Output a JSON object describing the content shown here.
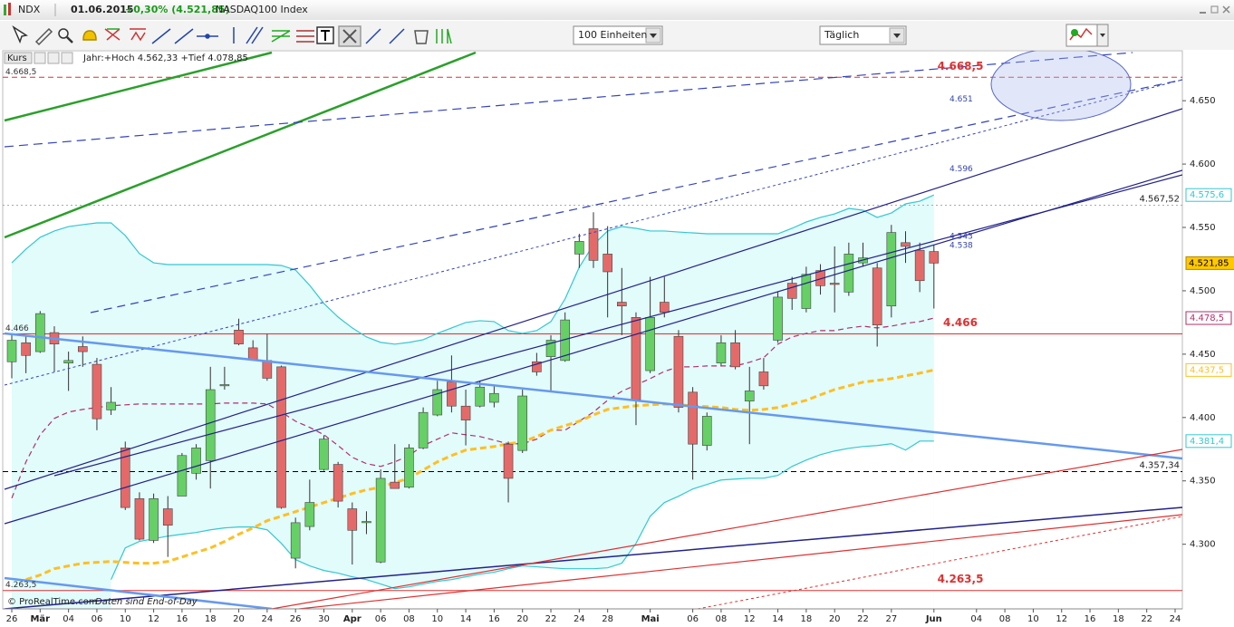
{
  "window": {
    "symbol": "NDX",
    "date": "01.06.2015",
    "change": "+0,30% (4.521,85)",
    "name": "NASDAQ100 Index"
  },
  "toolbar": {
    "units": "100 Einheiten",
    "period": "Täglich"
  },
  "chart_data": {
    "type": "candlestick",
    "info_label": "Kurs",
    "info": "Jahr:+Hoch 4.562,33 +Tief 4.078,85",
    "footer": "© ProRealTime.com",
    "footer_note": "Daten sind End-of-Day",
    "up_color": "#66d066",
    "down_color": "#e46a6a",
    "ylim": [
      4249,
      4688
    ],
    "yticks": [
      {
        "value": 4300,
        "label": "4.300"
      },
      {
        "value": 4350,
        "label": "4.350"
      },
      {
        "value": 4400,
        "label": "4.400"
      },
      {
        "value": 4450,
        "label": "4.450"
      },
      {
        "value": 4500,
        "label": "4.500"
      },
      {
        "value": 4550,
        "label": "4.550"
      },
      {
        "value": 4600,
        "label": "4.600"
      },
      {
        "value": 4650,
        "label": "4.650"
      }
    ],
    "categories": [
      "26",
      null,
      "Mär",
      null,
      "04",
      null,
      "06",
      null,
      "10",
      null,
      "12",
      null,
      "16",
      null,
      "18",
      null,
      "20",
      null,
      "24",
      null,
      "26",
      null,
      "30",
      null,
      "Apr",
      null,
      "06",
      null,
      "08",
      null,
      "10",
      null,
      "14",
      null,
      "16",
      null,
      "20",
      null,
      "22",
      null,
      "24",
      null,
      "28",
      null,
      null,
      "Mai",
      null,
      null,
      "06",
      null,
      "08",
      null,
      "12",
      null,
      "14",
      null,
      "18",
      null,
      "20",
      null,
      "22",
      null,
      "27",
      null,
      null,
      "Jun",
      null,
      null,
      "04",
      null,
      "08",
      null,
      "10",
      null,
      "12",
      null,
      "16",
      null,
      "18",
      null,
      "22",
      null,
      "24"
    ],
    "open": [
      4444,
      4459,
      4452,
      4467,
      4443,
      4456,
      4442,
      4406,
      4376,
      4336,
      4303,
      4328,
      4338,
      4356,
      4366,
      4425,
      4469,
      4455,
      4445,
      4440,
      4289,
      4314,
      4359,
      4363,
      4328,
      4317,
      4286,
      4349,
      4345,
      4376,
      4402,
      4428,
      4409,
      4409,
      4412,
      4379,
      4374,
      4444,
      4448,
      4445,
      4529,
      4549,
      4529,
      4491,
      4479,
      4437,
      4491,
      4464,
      4420,
      4378,
      4443,
      4459,
      4413,
      4436,
      4461,
      4506,
      4486,
      4516,
      4506,
      4499,
      4522,
      4518,
      4488,
      4538,
      4532,
      4531,
      null,
      null,
      null,
      null,
      null,
      null,
      null,
      null,
      null,
      null,
      null,
      null,
      null,
      null,
      null,
      null,
      null
    ],
    "high": [
      4466,
      4464,
      4484,
      4472,
      4452,
      4464,
      4447,
      4424,
      4381,
      4341,
      4340,
      4338,
      4372,
      4379,
      4440,
      4440,
      4478,
      4461,
      4466,
      4441,
      4321,
      4351,
      4386,
      4365,
      4333,
      4326,
      4359,
      4379,
      4379,
      4408,
      4429,
      4449,
      4422,
      4429,
      4426,
      4381,
      4422,
      4451,
      4465,
      4483,
      4545,
      4562,
      4551,
      4518,
      4483,
      4511,
      4511,
      4469,
      4424,
      4404,
      4465,
      4469,
      4440,
      4447,
      4499,
      4511,
      4519,
      4521,
      4535,
      4538,
      4538,
      4522,
      4552,
      4547,
      4538,
      4536,
      null,
      null,
      null,
      null,
      null,
      null,
      null,
      null,
      null,
      null,
      null,
      null,
      null,
      null,
      null,
      null,
      null
    ],
    "low": [
      4431,
      4435,
      4451,
      4436,
      4421,
      4440,
      4390,
      4402,
      4327,
      4303,
      4301,
      4290,
      4338,
      4351,
      4344,
      4422,
      4457,
      4445,
      4429,
      4328,
      4281,
      4311,
      4358,
      4329,
      4284,
      4308,
      4285,
      4344,
      4344,
      4375,
      4401,
      4404,
      4378,
      4408,
      4408,
      4333,
      4372,
      4433,
      4420,
      4444,
      4518,
      4518,
      4479,
      4465,
      4394,
      4435,
      4479,
      4404,
      4351,
      4374,
      4441,
      4438,
      4379,
      4422,
      4459,
      4485,
      4483,
      4497,
      4483,
      4496,
      4519,
      4456,
      4479,
      4522,
      4499,
      4486,
      null,
      null,
      null,
      null,
      null,
      null,
      null,
      null,
      null,
      null,
      null,
      null,
      null,
      null,
      null,
      null,
      null
    ],
    "close": [
      4461,
      4449,
      4482,
      4458,
      4445,
      4452,
      4399,
      4412,
      4329,
      4304,
      4336,
      4315,
      4370,
      4376,
      4422,
      4426,
      4458,
      4446,
      4431,
      4329,
      4317,
      4333,
      4383,
      4334,
      4311,
      4318,
      4352,
      4344,
      4376,
      4404,
      4422,
      4409,
      4398,
      4424,
      4419,
      4352,
      4417,
      4436,
      4461,
      4477,
      4539,
      4524,
      4515,
      4488,
      4414,
      4479,
      4483,
      4408,
      4379,
      4401,
      4459,
      4440,
      4421,
      4425,
      4495,
      4494,
      4513,
      4504,
      4505,
      4529,
      4526,
      4473,
      4546,
      4535,
      4508,
      4521.85,
      null,
      null,
      null,
      null,
      null,
      null,
      null,
      null,
      null,
      null,
      null,
      null,
      null,
      null,
      null,
      null,
      null
    ],
    "close_label": "4.521,85",
    "overlays": [
      {
        "color": "#33c8d0",
        "style": "solid",
        "last_label": "4.575,6",
        "values": [
          4522.1,
          4532.9,
          4542.2,
          4547.2,
          4550.7,
          4552.2,
          4553.6,
          4553.6,
          4543.6,
          4529.3,
          4522.1,
          4520.7,
          4520.7,
          4520.7,
          4520.7,
          4520.7,
          4520.7,
          4520.7,
          4520.7,
          4520.0,
          4516.4,
          4504.3,
          4490.0,
          4479.3,
          4470.7,
          4463.6,
          4459.3,
          4457.9,
          4459.3,
          4461.4,
          4466.4,
          4470.7,
          4475.0,
          4476.4,
          4475.7,
          4468.6,
          4466.4,
          4468.6,
          4475.7,
          4493.6,
          4518.6,
          4536.4,
          4547.2,
          4550.7,
          4549.3,
          4547.2,
          4547.2,
          4546.4,
          4545.7,
          4545.0,
          4545.0,
          4545.0,
          4545.0,
          4545.0,
          4545.0,
          4549.3,
          4554.3,
          4557.9,
          4560.7,
          4565.0,
          4563.6,
          4557.9,
          4561.4,
          4568.6,
          4570.7,
          4575.6,
          null,
          null,
          null,
          null,
          null,
          null,
          null,
          null,
          null,
          null,
          null,
          null,
          null,
          null,
          null,
          null,
          null
        ]
      },
      {
        "color": "#33c8d0",
        "style": "solid",
        "last_label": "4.381,4",
        "values": [
          null,
          null,
          null,
          null,
          null,
          null,
          null,
          4272.1,
          4297.1,
          4302.2,
          4304.3,
          4306.4,
          4307.9,
          4309.3,
          4311.4,
          4312.9,
          4313.6,
          4313.6,
          4311.4,
          4300.7,
          4287.9,
          4282.9,
          4279.3,
          4277.2,
          4274.3,
          4272.1,
          4268.6,
          4265.0,
          4266.4,
          4268.6,
          4270.7,
          4272.1,
          4274.3,
          4276.4,
          4277.9,
          4280.7,
          4282.9,
          4282.2,
          4281.4,
          4280.7,
          4280.7,
          4280.7,
          4281.4,
          4285.0,
          4300.7,
          4322.1,
          4332.9,
          4337.9,
          4343.6,
          4347.2,
          4350.7,
          4351.4,
          4352.1,
          4352.1,
          4354.3,
          4361.4,
          4366.4,
          4370.7,
          4373.6,
          4375.7,
          4377.1,
          4377.9,
          4379.3,
          4374.3,
          4381.4,
          4381.4,
          null,
          null,
          null,
          null,
          null,
          null,
          null,
          null,
          null,
          null,
          null,
          null,
          null,
          null,
          null,
          null,
          null
        ]
      },
      {
        "color": "#b0306a",
        "style": "dashed",
        "last_label": "4.478,5",
        "values": [
          4336.4,
          4365.0,
          4386.4,
          4399.3,
          4404.3,
          4406.4,
          4407.9,
          4409.3,
          4410.0,
          4410.7,
          4410.7,
          4410.7,
          4410.7,
          4410.7,
          4410.7,
          4411.4,
          4411.4,
          4411.4,
          4410.7,
          4404.3,
          4397.1,
          4392.2,
          4386.4,
          4377.9,
          4368.6,
          4363.6,
          4361.4,
          4365.0,
          4370.0,
          4377.9,
          4382.9,
          4387.9,
          4386.4,
          4385.0,
          4382.1,
          4379.3,
          4379.3,
          4382.9,
          4390.0,
          4390.0,
          4397.1,
          4404.3,
          4413.6,
          4420.7,
          4425.7,
          4430.7,
          4436.4,
          4440.0,
          4440.0,
          4440.7,
          4440.7,
          4440.7,
          4443.6,
          4447.2,
          4457.9,
          4463.6,
          4466.4,
          4468.6,
          4468.6,
          4470.7,
          4472.1,
          4470.7,
          4472.1,
          4474.3,
          4475.7,
          4478.5,
          null,
          null,
          null,
          null,
          null,
          null,
          null,
          null,
          null,
          null,
          null,
          null,
          null,
          null,
          null,
          null,
          null
        ]
      },
      {
        "color": "#ffbf20",
        "style": "thick-dashed",
        "last_label": "4.437,5",
        "values": [
          null,
          4272.1,
          4275.7,
          4280.7,
          4282.9,
          4285.0,
          4285.7,
          4286.4,
          4285.7,
          4285.0,
          4285.0,
          4286.4,
          4290.0,
          4293.6,
          4297.1,
          4302.2,
          4307.9,
          4312.9,
          4318.6,
          4322.1,
          4325.7,
          4329.3,
          4332.9,
          4336.4,
          4340.0,
          4342.9,
          4345.0,
          4348.6,
          4352.1,
          4358.6,
          4365.0,
          4370.0,
          4374.3,
          4375.7,
          4377.1,
          4379.3,
          4380.7,
          4385.0,
          4390.0,
          4393.6,
          4397.1,
          4402.1,
          4406.4,
          4407.9,
          4409.3,
          4410.0,
          4410.7,
          4410.0,
          4409.3,
          4408.6,
          4407.9,
          4406.4,
          4405.7,
          4406.4,
          4407.9,
          4410.7,
          4413.6,
          4417.9,
          4422.1,
          4425.0,
          4427.9,
          4429.3,
          4430.7,
          4432.9,
          4435.0,
          4437.5,
          null,
          null,
          null,
          null,
          null,
          null,
          null,
          null,
          null,
          null,
          null,
          null,
          null,
          null,
          null,
          null,
          null
        ]
      }
    ],
    "levels": [
      {
        "value": 4668.5,
        "label": "4.668,5",
        "color": "#e03030",
        "style": "dashed",
        "alert": true
      },
      {
        "value": 4466,
        "label": "4.466",
        "color": "#e03030",
        "style": "solid",
        "alert": true
      },
      {
        "value": 4263.5,
        "label": "4.263,5",
        "color": "#e03030",
        "style": "solid",
        "alert": true
      },
      {
        "value": 4567.52,
        "label": "4.567,52",
        "color": "#aaaaaa",
        "style": "dotted",
        "alert": false
      },
      {
        "value": 4357.34,
        "label": "4.357,34",
        "color": "#000000",
        "style": "dashed",
        "alert": false
      }
    ],
    "trend_labels": [
      {
        "value": 4651,
        "label": "4.651"
      },
      {
        "value": 4596,
        "label": "4.596"
      },
      {
        "value": 4543,
        "label": "4.543"
      },
      {
        "value": 4538,
        "label": "4.538"
      }
    ]
  }
}
